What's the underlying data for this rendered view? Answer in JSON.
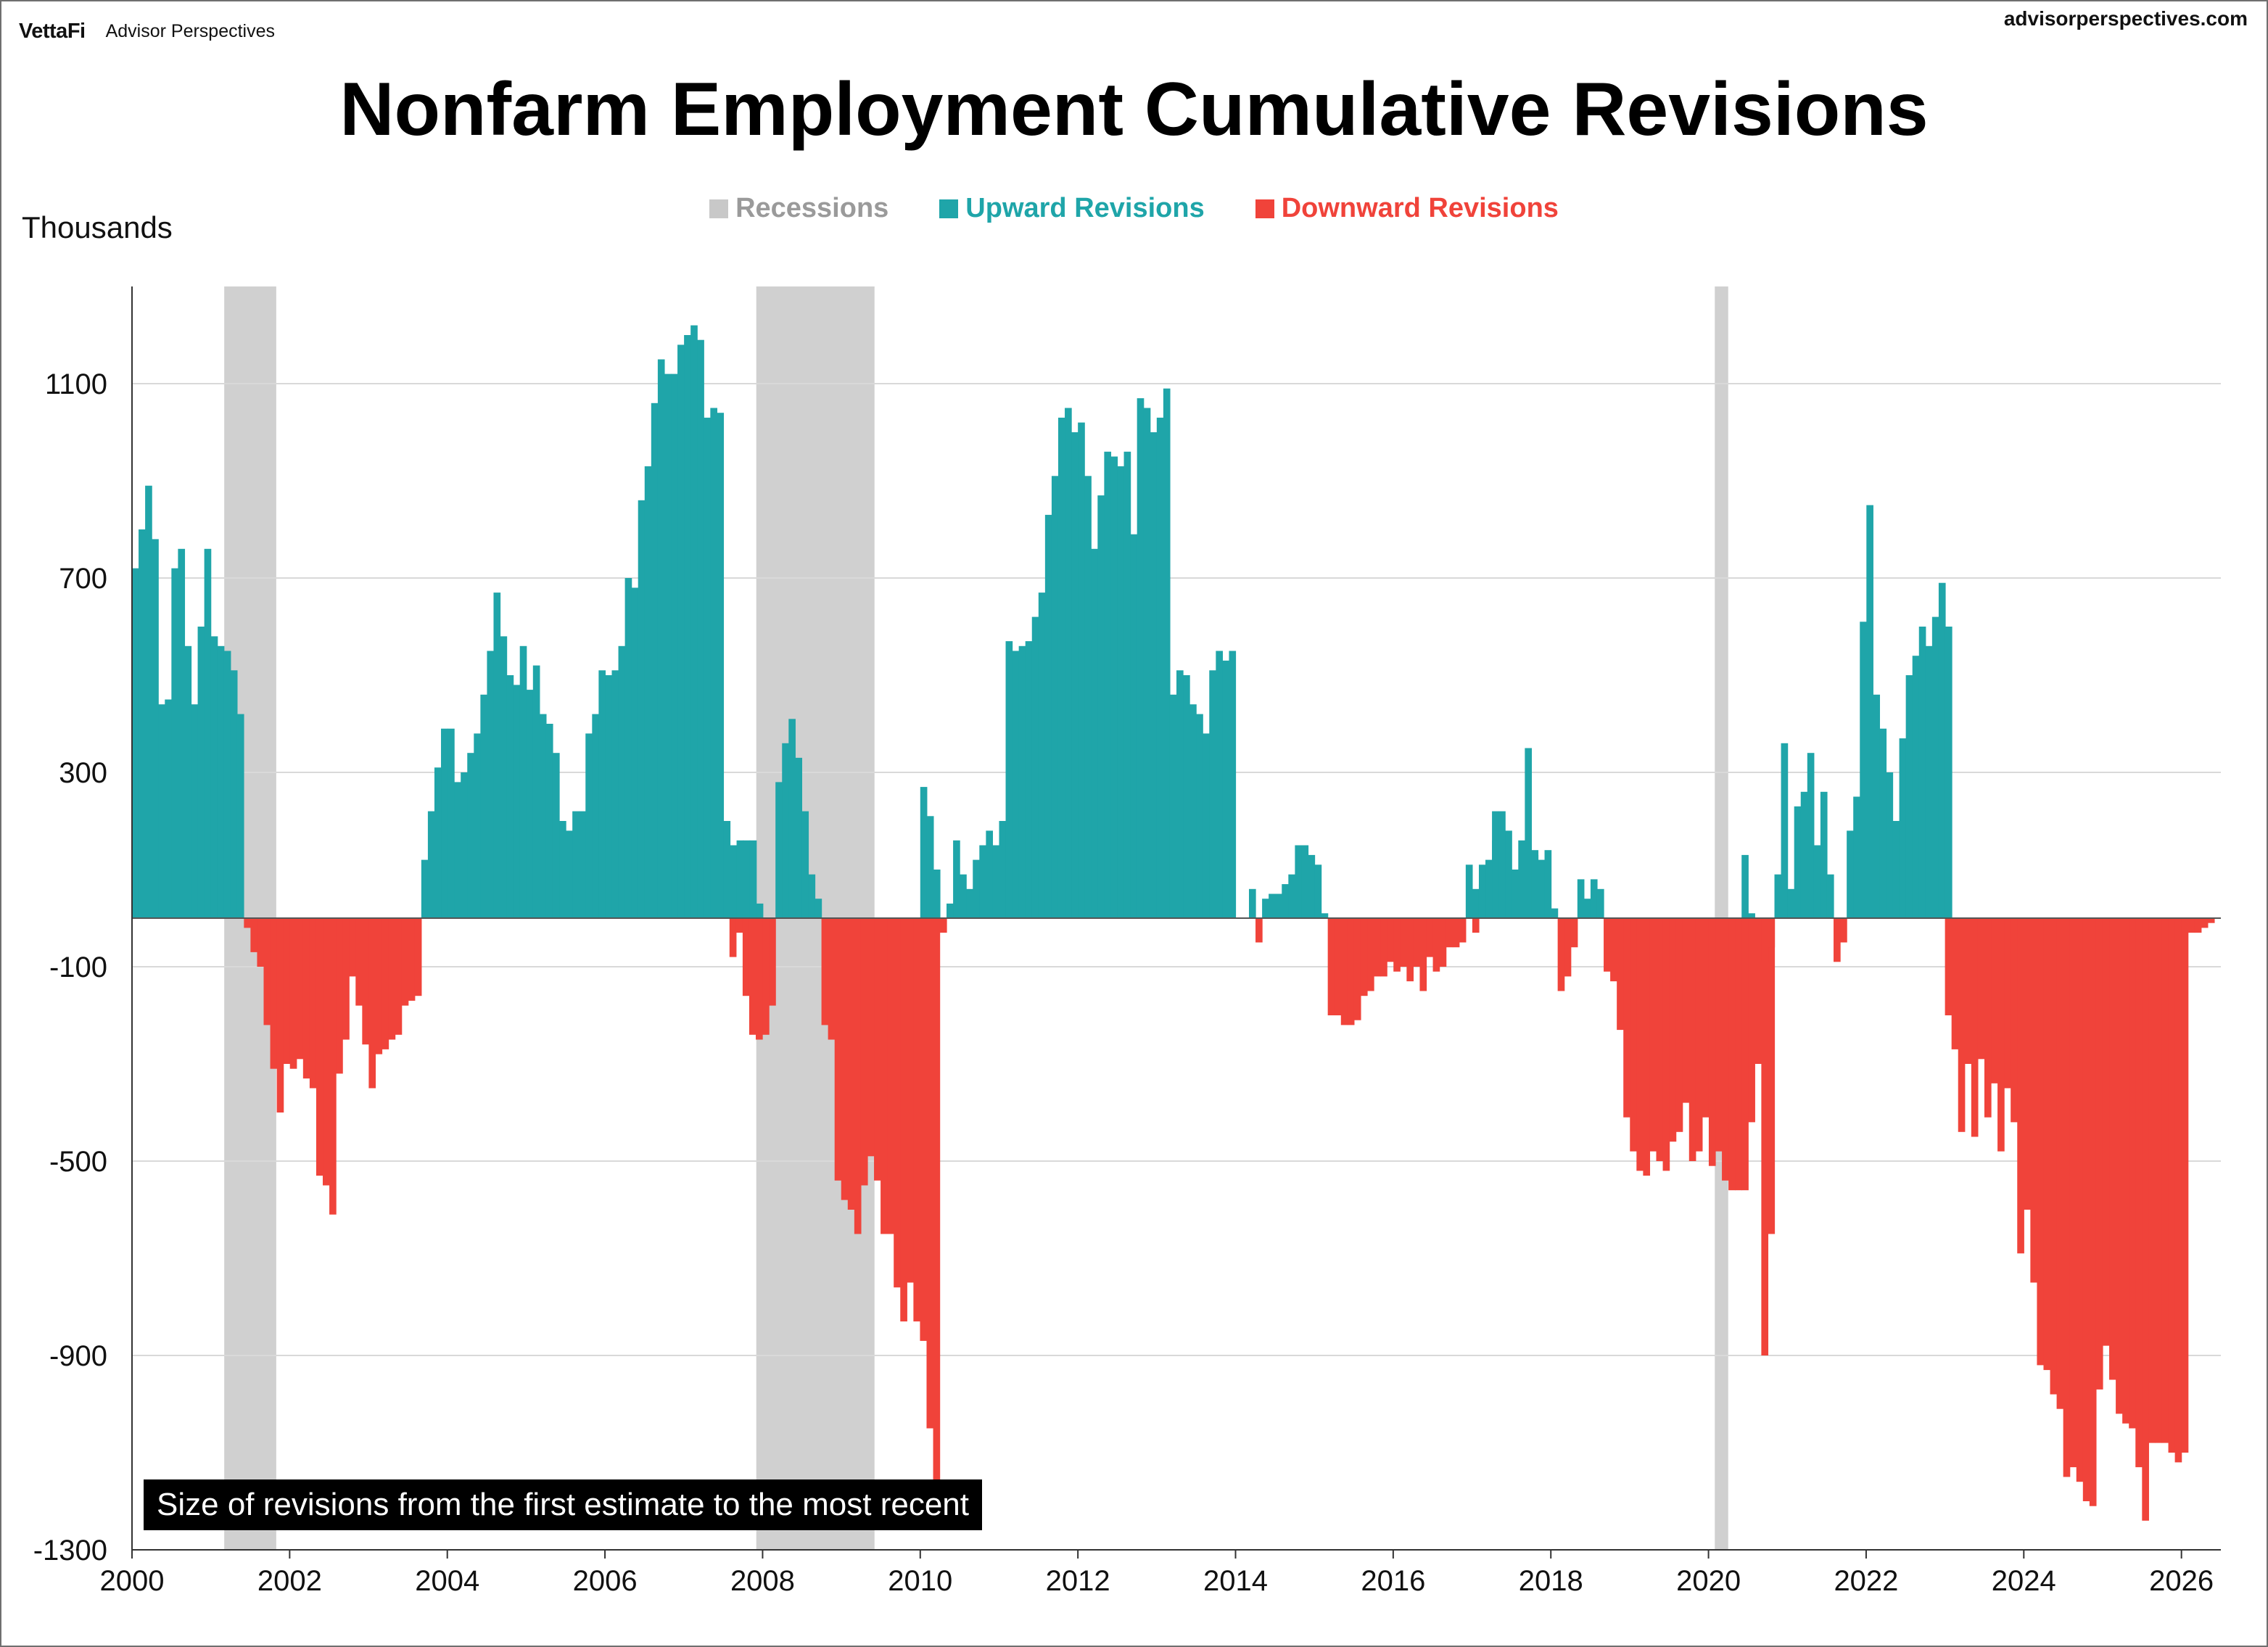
{
  "header": {
    "brand_logo": "VettaFi",
    "brand_sub": "Advisor Perspectives",
    "site": "advisorperspectives.com"
  },
  "chart_data": {
    "type": "bar",
    "title": "Nonfarm Employment Cumulative Revisions",
    "ylabel": "Thousands",
    "xlabel": "",
    "annotation": "Size of revisions from the first estimate to the most recent",
    "legend": [
      {
        "label": "Recessions",
        "color": "#c8c8c8"
      },
      {
        "label": "Upward Revisions",
        "color": "#1fa5a9"
      },
      {
        "label": "Downward Revisions",
        "color": "#f0433a"
      }
    ],
    "legend_position": "top-center",
    "colors": {
      "up": "#1fa5a9",
      "down": "#f0433a",
      "recession": "#d0d0d0",
      "grid": "#d9d9d9"
    },
    "ylim": [
      -1300,
      1300
    ],
    "yticks": [
      1100,
      700,
      300,
      -100,
      -500,
      -900,
      -1300
    ],
    "xlim": [
      2000,
      2026.5
    ],
    "xticks": [
      2000,
      2002,
      2004,
      2006,
      2008,
      2010,
      2012,
      2014,
      2016,
      2018,
      2020,
      2022,
      2024,
      2026
    ],
    "grid": "horizontal",
    "recessions": [
      [
        2001.17,
        2001.83
      ],
      [
        2007.92,
        2009.42
      ],
      [
        2020.08,
        2020.25
      ]
    ],
    "series": [
      {
        "start": 2000.0,
        "values": [
          720,
          800,
          890,
          780,
          440,
          450,
          720,
          760,
          560,
          440,
          600,
          760,
          580,
          560,
          550,
          510,
          420
        ]
      },
      {
        "start": 2001.42,
        "values": [
          -20,
          -70,
          -100,
          -220,
          -310,
          -400,
          -300,
          -310,
          -290,
          -330,
          -350,
          -530,
          -550,
          -610,
          -320,
          -250,
          -120,
          -180,
          -260,
          -350,
          -280,
          -270,
          -250,
          -240,
          -180,
          -170,
          -160
        ]
      },
      {
        "start": 2003.67,
        "values": [
          120,
          220,
          310,
          390,
          390,
          280,
          300,
          340,
          380,
          460,
          550,
          670,
          580,
          500,
          480,
          560,
          470,
          520,
          420,
          400,
          340,
          200,
          180,
          220,
          220,
          380,
          420,
          510,
          500,
          510,
          560,
          700,
          680,
          860,
          930,
          1060,
          1150,
          1120,
          1120,
          1180,
          1200,
          1220,
          1190,
          1030,
          1050,
          1040,
          200,
          150,
          160,
          160,
          160,
          30
        ]
      },
      {
        "start": 2007.58,
        "values": [
          -80,
          -30,
          -160,
          -240,
          -250,
          -240,
          -180,
          280,
          360,
          410,
          330,
          220,
          90,
          40,
          -220,
          -250,
          -540,
          -580,
          -600,
          -650,
          -550,
          -490,
          -540,
          -650,
          -650,
          -760,
          -830,
          -750,
          -830,
          -870,
          -1050,
          -1210
        ]
      },
      {
        "start": 2010.0,
        "values": [
          270,
          210,
          100,
          -30,
          30,
          160,
          90,
          60,
          120,
          150,
          180,
          150,
          200,
          570,
          550,
          560,
          570,
          620,
          670,
          830,
          910,
          1030,
          1050,
          1000,
          1020,
          910,
          760,
          870,
          960,
          950,
          930,
          960,
          790,
          1070,
          1050,
          1000,
          1030,
          1090,
          460,
          510,
          500,
          440,
          420,
          380,
          510,
          550,
          530,
          550
        ]
      },
      {
        "start": 2014.17,
        "values": [
          60,
          -50,
          40,
          50,
          50,
          70,
          90,
          150,
          150,
          130,
          110,
          10,
          -200,
          -200,
          -220,
          -220,
          -210,
          -160,
          -150,
          -120,
          -120,
          -90,
          -110,
          -100,
          -130,
          -100,
          -150,
          -80,
          -110,
          -100,
          -60,
          -60,
          -50,
          0,
          -30,
          70,
          50,
          220,
          100,
          60,
          80,
          100,
          140,
          130,
          40
        ]
      },
      {
        "start": 2016.92,
        "values": [
          110,
          60,
          110,
          120,
          160,
          220,
          180,
          100,
          160,
          350,
          140,
          120,
          140,
          20,
          -150,
          -120,
          -60,
          80,
          40,
          80,
          60,
          -110,
          -130,
          -230,
          -410,
          -480,
          -520,
          -530,
          -480,
          -500,
          -520,
          -460,
          -440,
          -380,
          -500,
          -480,
          -410,
          -510,
          -480,
          -540,
          -560,
          -560,
          -560,
          -420,
          -220,
          -900,
          -650
        ]
      },
      {
        "start": 2020.42,
        "values": [
          130,
          10,
          -300,
          -90,
          -60,
          90,
          360,
          60,
          230,
          260,
          340,
          150,
          260,
          90,
          -90,
          -50,
          180,
          250,
          610,
          850,
          460,
          390,
          300,
          200,
          370,
          500,
          540,
          600,
          560,
          620,
          690,
          600
        ]
      },
      {
        "start": 2023.0,
        "values": [
          -200,
          -270,
          -440,
          -300,
          -450,
          -290,
          -410,
          -340,
          -480,
          -350,
          -420,
          -690,
          -600,
          -750,
          -920,
          -930,
          -980,
          -1010,
          -1150,
          -1130,
          -1160,
          -1200,
          -1210,
          -970,
          -880,
          -950,
          -1020,
          -1040,
          -1050,
          -1130,
          -1240,
          -1080,
          -1080,
          -1080,
          -1100,
          -1120,
          -1100,
          -30,
          -30,
          -20,
          -10
        ]
      }
    ]
  }
}
